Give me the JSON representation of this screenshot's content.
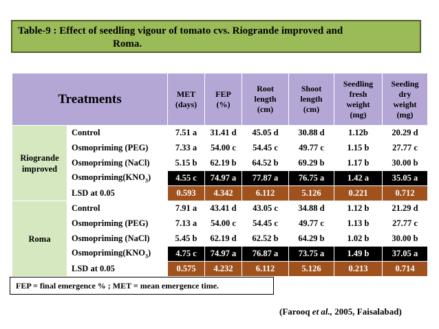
{
  "title": {
    "line1": "Table-9 : Effect of seedling vigour of tomato cvs. Riogrande improved and",
    "line2": "Roma."
  },
  "table": {
    "headers": {
      "treatments": "Treatments",
      "met": [
        "MET",
        "(days)"
      ],
      "fep": [
        "FEP",
        "(%)"
      ],
      "root": [
        "Root",
        "length",
        "(cm)"
      ],
      "shoot": [
        "Shoot",
        "length",
        "(cm)"
      ],
      "fresh": [
        "Seedling",
        "fresh",
        "weight",
        "(mg)"
      ],
      "dry": [
        "Seeding",
        "dry",
        "weight",
        "(mg)"
      ]
    },
    "groups": [
      {
        "name": [
          "Riogrande",
          "improved"
        ],
        "rows": [
          {
            "treatment": "Control",
            "values": [
              "7.51 a",
              "31.41 d",
              "45.05 d",
              "30.88 d",
              "1.12b",
              "20.29 d"
            ]
          },
          {
            "treatment": "Osmopriming (PEG)",
            "values": [
              "7.33 a",
              "54.00 c",
              "54.45 c",
              "49.77 c",
              "1.15 b",
              "27.77 c"
            ]
          },
          {
            "treatment": "Osmopriming (NaCl)",
            "values": [
              "5.15 b",
              "62.19 b",
              "64.52 b",
              "69.29 b",
              "1.17 b",
              "30.00 b"
            ]
          },
          {
            "treatment_pre": "Osmopriming(KNO",
            "treatment_sub": "3",
            "treatment_post": ")",
            "values": [
              "4.55 c",
              "74.97 a",
              "77.87 a",
              "76.75 a",
              "1.42 a",
              "35.05 a"
            ]
          },
          {
            "treatment": "LSD at 0.05",
            "values": [
              "0.593",
              "4.342",
              "6.112",
              "5.126",
              "0.221",
              "0.712"
            ]
          }
        ]
      },
      {
        "name": [
          "Roma"
        ],
        "rows": [
          {
            "treatment": "Control",
            "values": [
              "7.91 a",
              "43.41 d",
              "43.05 c",
              "34.88 d",
              "1.12 b",
              "21.29 d"
            ]
          },
          {
            "treatment": "Osmopriming (PEG)",
            "values": [
              "7.13 a",
              "54.00 c",
              "54.45 c",
              "49.77 c",
              "1.13 b",
              "27.77 c"
            ]
          },
          {
            "treatment": "Osmopriming (NaCl)",
            "values": [
              "5.45 b",
              "62.19 d",
              "62.52 b",
              "64.29 b",
              "1.02 b",
              "30.00 b"
            ]
          },
          {
            "treatment_pre": "Osmopriming(KNO",
            "treatment_sub": "3",
            "treatment_post": ")",
            "values": [
              "4.75 c",
              "74.97 a",
              "76.87 a",
              "73.75 a",
              "1.49 b",
              "37.05 a"
            ]
          },
          {
            "treatment": "LSD at 0.05",
            "values": [
              "0.575",
              "4.232",
              "6.112",
              "5.126",
              "0.213",
              "0.714"
            ]
          }
        ]
      }
    ]
  },
  "footnote": "FEP = final emergence % ;     MET = mean emergence time.",
  "citation": {
    "pre": "(Farooq ",
    "etal": "et al.,",
    "post": " 2005, Faisalabad)"
  }
}
